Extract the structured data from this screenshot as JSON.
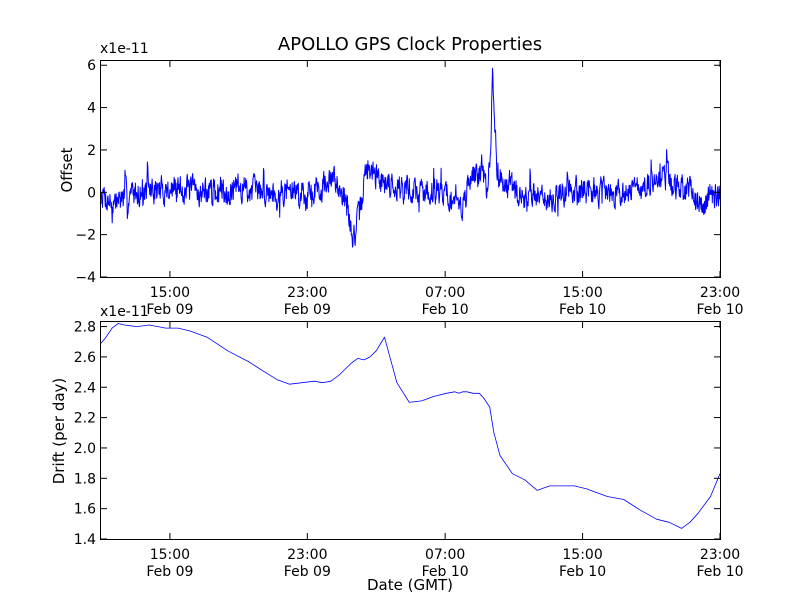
{
  "chart_data": [
    {
      "type": "line",
      "title": "APOLLO GPS Clock Properties",
      "xlabel": "",
      "ylabel": "Offset",
      "multiplier": "x1e-11",
      "xlim": [
        9.33,
        24.33
      ],
      "ylim": [
        -4,
        6.2
      ],
      "yticks": [
        {
          "value": -4,
          "label": "−4"
        },
        {
          "value": -2,
          "label": "−2"
        },
        {
          "value": 0,
          "label": "0"
        },
        {
          "value": 2,
          "label": "2"
        },
        {
          "value": 4,
          "label": "4"
        },
        {
          "value": 6,
          "label": "6"
        }
      ],
      "xticks": [
        {
          "value": 11,
          "time": "15:00",
          "date": "Feb 09"
        },
        {
          "value": 14.33,
          "time": "23:00",
          "date": "Feb 09"
        },
        {
          "value": 17.67,
          "time": "07:00",
          "date": "Feb 10"
        },
        {
          "value": 21,
          "time": "15:00",
          "date": "Feb 10"
        },
        {
          "value": 24.33,
          "time": "23:00",
          "date": "Feb 10"
        }
      ],
      "series_color": "#0000ff",
      "noise": {
        "samples": 1600,
        "amplitude": 0.55,
        "seed": 7
      },
      "series": [
        {
          "name": "Offset",
          "x": [
            9.33,
            9.6,
            9.9,
            10.3,
            10.8,
            11.3,
            11.8,
            12.3,
            12.8,
            13.3,
            13.8,
            14.3,
            14.8,
            15.0,
            15.15,
            15.3,
            15.45,
            15.6,
            15.7,
            15.8,
            15.95,
            16.1,
            16.4,
            16.8,
            17.2,
            17.5,
            17.7,
            17.9,
            18.1,
            18.3,
            18.45,
            18.6,
            18.7,
            18.78,
            18.82,
            18.86,
            18.92,
            19.0,
            19.2,
            19.5,
            19.8,
            20.2,
            20.6,
            21.0,
            21.5,
            22.0,
            22.5,
            22.8,
            23.0,
            23.2,
            23.6,
            23.9,
            24.1,
            24.33
          ],
          "y": [
            0.0,
            -0.5,
            -0.2,
            0.1,
            0.1,
            0.2,
            0.0,
            0.1,
            0.2,
            0.0,
            0.1,
            0.0,
            0.3,
            0.6,
            0.2,
            -0.8,
            -2.2,
            -1.0,
            0.4,
            1.2,
            0.8,
            0.6,
            0.4,
            0.1,
            0.0,
            0.2,
            0.0,
            -0.8,
            -0.5,
            0.6,
            1.0,
            0.6,
            0.2,
            2.0,
            6.1,
            3.5,
            1.2,
            0.7,
            0.4,
            -0.4,
            0.0,
            -0.3,
            0.0,
            0.1,
            0.0,
            0.1,
            0.2,
            0.4,
            0.8,
            0.3,
            0.0,
            -0.6,
            -0.2,
            -0.1
          ]
        }
      ]
    },
    {
      "type": "line",
      "title": "",
      "xlabel": "Date (GMT)",
      "ylabel": "Drift (per day)",
      "multiplier": "x1e-11",
      "xlim": [
        9.33,
        24.33
      ],
      "ylim": [
        1.4,
        2.83
      ],
      "yticks": [
        {
          "value": 1.4,
          "label": "1.4"
        },
        {
          "value": 1.6,
          "label": "1.6"
        },
        {
          "value": 1.8,
          "label": "1.8"
        },
        {
          "value": 2.0,
          "label": "2.0"
        },
        {
          "value": 2.2,
          "label": "2.2"
        },
        {
          "value": 2.4,
          "label": "2.4"
        },
        {
          "value": 2.6,
          "label": "2.6"
        },
        {
          "value": 2.8,
          "label": "2.8"
        }
      ],
      "xticks": [
        {
          "value": 11,
          "time": "15:00",
          "date": "Feb 09"
        },
        {
          "value": 14.33,
          "time": "23:00",
          "date": "Feb 09"
        },
        {
          "value": 17.67,
          "time": "07:00",
          "date": "Feb 10"
        },
        {
          "value": 21,
          "time": "15:00",
          "date": "Feb 10"
        },
        {
          "value": 24.33,
          "time": "23:00",
          "date": "Feb 10"
        }
      ],
      "series_color": "#0000ff",
      "series": [
        {
          "name": "Drift",
          "x": [
            9.33,
            9.45,
            9.6,
            9.75,
            9.9,
            10.2,
            10.5,
            10.9,
            11.2,
            11.5,
            11.9,
            12.4,
            12.9,
            13.3,
            13.6,
            13.9,
            14.2,
            14.5,
            14.7,
            14.9,
            15.1,
            15.25,
            15.4,
            15.55,
            15.7,
            15.85,
            16.0,
            16.2,
            16.5,
            16.8,
            17.1,
            17.4,
            17.7,
            17.9,
            18.0,
            18.1,
            18.2,
            18.35,
            18.5,
            18.6,
            18.75,
            18.85,
            19.0,
            19.3,
            19.6,
            19.9,
            20.2,
            20.5,
            20.8,
            21.1,
            21.3,
            21.6,
            22.0,
            22.4,
            22.8,
            23.1,
            23.4,
            23.6,
            23.8,
            24.1,
            24.33
          ],
          "y": [
            2.69,
            2.73,
            2.79,
            2.82,
            2.81,
            2.8,
            2.81,
            2.79,
            2.79,
            2.77,
            2.73,
            2.64,
            2.57,
            2.5,
            2.45,
            2.42,
            2.43,
            2.44,
            2.43,
            2.44,
            2.48,
            2.52,
            2.56,
            2.59,
            2.58,
            2.6,
            2.64,
            2.73,
            2.43,
            2.3,
            2.31,
            2.34,
            2.36,
            2.37,
            2.36,
            2.37,
            2.37,
            2.36,
            2.36,
            2.33,
            2.27,
            2.1,
            1.95,
            1.83,
            1.79,
            1.72,
            1.75,
            1.75,
            1.75,
            1.73,
            1.71,
            1.68,
            1.66,
            1.59,
            1.53,
            1.51,
            1.47,
            1.51,
            1.57,
            1.68,
            1.83
          ]
        }
      ]
    }
  ]
}
